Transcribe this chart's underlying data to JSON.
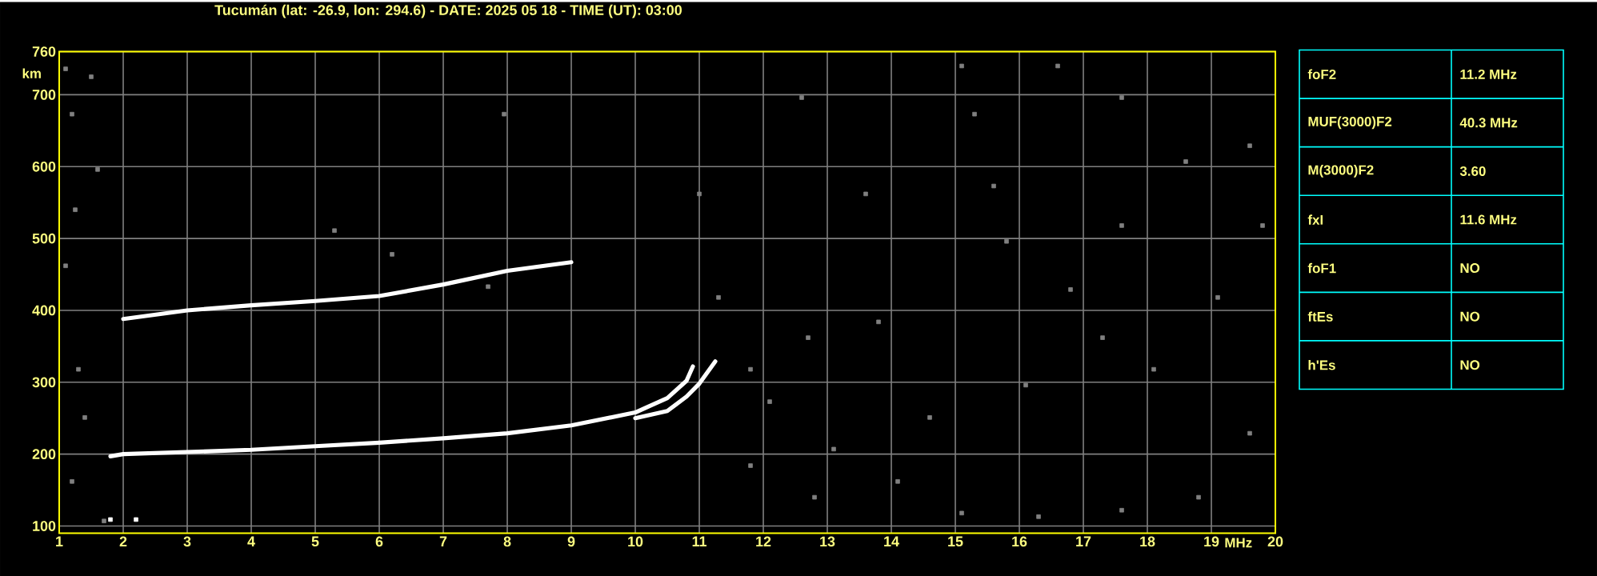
{
  "chart_data": [
    {
      "type": "line",
      "title": "Tucumán (lat: -26.9, lon: 294.6) - DATE: 2025 05 18 - TIME (UT): 03:00",
      "xlabel": "MHz",
      "ylabel": "km",
      "xlim": [
        1,
        20
      ],
      "ylim": [
        90,
        760
      ],
      "xticks": [
        1,
        2,
        3,
        4,
        5,
        6,
        7,
        8,
        9,
        10,
        11,
        12,
        13,
        14,
        15,
        16,
        17,
        18,
        19,
        20
      ],
      "yticks": [
        100,
        200,
        300,
        400,
        500,
        600,
        700,
        760
      ],
      "grid": true,
      "series": [
        {
          "type": "line",
          "color": "#ffffff",
          "line_style": "solid",
          "x": [
            1.8,
            2,
            3,
            4,
            5,
            6,
            7,
            8,
            9,
            10,
            10.5,
            10.8,
            10.9
          ],
          "values": [
            197,
            200,
            203,
            206,
            211,
            216,
            222,
            229,
            240,
            258,
            278,
            302,
            322
          ]
        },
        {
          "type": "line",
          "color": "#ffffff",
          "line_style": "solid",
          "x": [
            10,
            10.5,
            10.8,
            11,
            11.25
          ],
          "values": [
            250,
            260,
            280,
            298,
            329
          ]
        },
        {
          "type": "line",
          "color": "#ffffff",
          "line_style": "solid",
          "x": [
            2,
            3,
            4,
            5,
            6,
            7,
            8,
            9
          ],
          "values": [
            388,
            400,
            407,
            413,
            420,
            436,
            455,
            467
          ]
        },
        {
          "type": "scatter",
          "color": "#808080",
          "marker": "square",
          "x": [
            1.1,
            1.5,
            1.2,
            1.6,
            1.25,
            1.1,
            1.3,
            1.4,
            1.2,
            1.7,
            7.95,
            7.7,
            5.3,
            6.2,
            11.0,
            11.3,
            15.1,
            15.3,
            15.6,
            13.6,
            12.6,
            16.6,
            17.6,
            18.6,
            19.6,
            19.8,
            19.1,
            17.3,
            16.1,
            14.6,
            13.1,
            12.1,
            11.8,
            12.8,
            14.1,
            15.1,
            16.3,
            17.6,
            18.8,
            19.6,
            18.1,
            16.8,
            13.8,
            12.7,
            11.8,
            15.8,
            17.6
          ],
          "values": [
            736,
            725,
            673,
            596,
            540,
            462,
            318,
            251,
            162,
            107,
            673,
            433,
            511,
            478,
            562,
            418,
            740,
            673,
            573,
            562,
            696,
            740,
            696,
            607,
            629,
            518,
            418,
            362,
            296,
            251,
            207,
            273,
            184,
            140,
            162,
            118,
            113,
            122,
            140,
            229,
            318,
            429,
            384,
            362,
            318,
            496,
            518
          ]
        },
        {
          "type": "scatter",
          "color": "#ffffff",
          "marker": "square",
          "x": [
            1.8,
            2.2
          ],
          "values": [
            109,
            109
          ]
        }
      ]
    },
    {
      "type": "other",
      "annotations": [
        "foF2",
        "11.2 MHz",
        "MUF(3000)F2",
        "40.3 MHz",
        "M(3000)F2",
        "3.60",
        "fxI",
        "11.6 MHz",
        "foF1",
        "NO",
        "ftEs",
        "NO",
        "h'Es",
        "NO"
      ]
    }
  ]
}
